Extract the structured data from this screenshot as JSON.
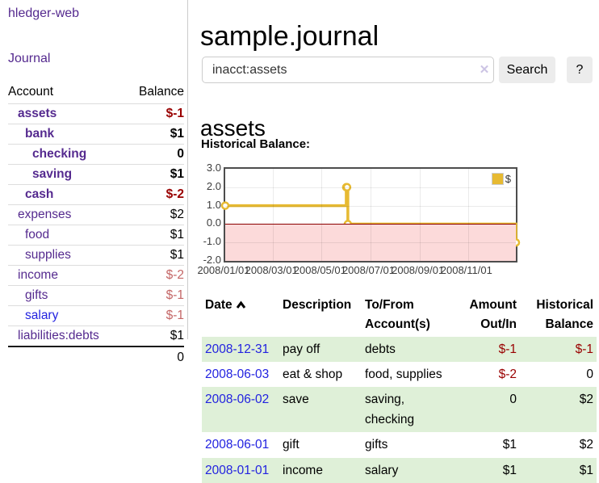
{
  "app": {
    "title": "hledger-web"
  },
  "sidebar": {
    "nav": {
      "journal_label": "Journal"
    },
    "table": {
      "account_header": "Account",
      "balance_header": "Balance",
      "rows": [
        {
          "account": "assets",
          "balance": "$-1"
        },
        {
          "account": "bank",
          "balance": "$1"
        },
        {
          "account": "checking",
          "balance": "0"
        },
        {
          "account": "saving",
          "balance": "$1"
        },
        {
          "account": "cash",
          "balance": "$-2"
        },
        {
          "account": "expenses",
          "balance": "$2"
        },
        {
          "account": "food",
          "balance": "$1"
        },
        {
          "account": "supplies",
          "balance": "$1"
        },
        {
          "account": "income",
          "balance": "$-2"
        },
        {
          "account": "gifts",
          "balance": "$-1"
        },
        {
          "account": "salary",
          "balance": "$-1"
        },
        {
          "account": "liabilities:debts",
          "balance": "$1"
        }
      ],
      "total": "0"
    }
  },
  "header": {
    "title": "sample.journal"
  },
  "search": {
    "value": "inacct:assets",
    "clear_icon": "✕",
    "button_label": "Search",
    "help_label": "?"
  },
  "account_page": {
    "title": "assets",
    "chart_label": "Historical Balance:"
  },
  "chart_data": {
    "type": "line",
    "step": true,
    "title": "Historical Balance",
    "series": [
      {
        "name": "$",
        "color": "#e7ba32",
        "points": [
          [
            "2008-01-01",
            1
          ],
          [
            "2008-06-01",
            2
          ],
          [
            "2008-06-02",
            2
          ],
          [
            "2008-06-03",
            0
          ],
          [
            "2008-12-31",
            -1
          ]
        ]
      }
    ],
    "xlim": [
      "2008-01-01",
      "2008-12-31"
    ],
    "ylim": [
      -2,
      3
    ],
    "y_ticks": [
      3,
      2,
      1,
      0,
      -1,
      -2
    ],
    "x_ticks": [
      "2008/01/01",
      "2008/03/01",
      "2008/05/01",
      "2008/07/01",
      "2008/09/01",
      "2008/11/01"
    ],
    "grid": true,
    "negative_fill": "#fcdada",
    "zero_line_color": "#8b0000",
    "legend": {
      "label": "$",
      "position": "top-right"
    }
  },
  "register": {
    "headers": {
      "date": "Date",
      "description": "Description",
      "tofrom": "To/From Account(s)",
      "amount": "Amount Out/In",
      "historical": "Historical Balance"
    },
    "rows": [
      {
        "date": "2008-12-31",
        "description": "pay off",
        "tofrom": "debts",
        "amount": "$-1",
        "historical": "$-1"
      },
      {
        "date": "2008-06-03",
        "description": "eat & shop",
        "tofrom": "food, supplies",
        "amount": "$-2",
        "historical": "0"
      },
      {
        "date": "2008-06-02",
        "description": "save",
        "tofrom": "saving, checking",
        "amount": "0",
        "historical": "$2"
      },
      {
        "date": "2008-06-01",
        "description": "gift",
        "tofrom": "gifts",
        "amount": "$1",
        "historical": "$2"
      },
      {
        "date": "2008-01-01",
        "description": "income",
        "tofrom": "salary",
        "amount": "$1",
        "historical": "$1"
      }
    ]
  }
}
